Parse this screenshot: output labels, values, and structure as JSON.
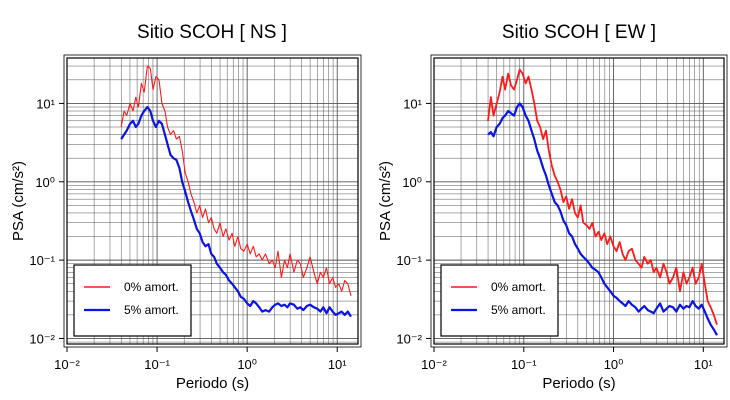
{
  "figure": {
    "colors": {
      "undamped": "#ff1a1a",
      "damped": "#0a14e6",
      "frame": "#000000",
      "grid": "#555555"
    }
  },
  "chart_data": [
    {
      "type": "line",
      "title": "Sitio SCOH [ NS ]",
      "xlabel": "Periodo (s)",
      "ylabel": "PSA (cm/s²)",
      "xscale": "log",
      "yscale": "log",
      "xlim": [
        0.01,
        17
      ],
      "ylim": [
        0.0085,
        38
      ],
      "xticks": [
        0.01,
        0.1,
        1,
        10
      ],
      "xtick_labels": [
        "10⁻²",
        "10⁻¹",
        "10⁰",
        "10¹"
      ],
      "yticks": [
        0.01,
        0.1,
        1,
        10
      ],
      "ytick_labels": [
        "10⁻²",
        "10⁻¹",
        "10⁰",
        "10¹"
      ],
      "grid": true,
      "legend_position": "bottom-left",
      "series": [
        {
          "name": "0% amort.",
          "color": "#ff1a1a",
          "x": [
            0.04,
            0.043,
            0.046,
            0.05,
            0.054,
            0.058,
            0.062,
            0.067,
            0.072,
            0.078,
            0.084,
            0.09,
            0.097,
            0.105,
            0.113,
            0.122,
            0.131,
            0.141,
            0.152,
            0.164,
            0.177,
            0.19,
            0.205,
            0.221,
            0.238,
            0.256,
            0.276,
            0.297,
            0.32,
            0.345,
            0.372,
            0.4,
            0.43,
            0.46,
            0.5,
            0.54,
            0.58,
            0.63,
            0.68,
            0.73,
            0.79,
            0.85,
            0.92,
            1.0,
            1.08,
            1.17,
            1.26,
            1.36,
            1.47,
            1.6,
            1.75,
            1.9,
            2.05,
            2.2,
            2.4,
            2.6,
            2.8,
            3.0,
            3.3,
            3.6,
            3.9,
            4.2,
            4.6,
            5.0,
            5.5,
            6.0,
            6.5,
            7.0,
            7.6,
            8.2,
            8.9,
            9.6,
            10.4,
            11.2,
            12.1,
            13.1,
            14.2
          ],
          "y": [
            5,
            8,
            7,
            10,
            8,
            12,
            9,
            18,
            14,
            30,
            28,
            15,
            22,
            20,
            10,
            8,
            5,
            4,
            4.5,
            3.5,
            3.8,
            2.5,
            1.3,
            1.0,
            0.7,
            0.55,
            0.4,
            0.5,
            0.35,
            0.45,
            0.3,
            0.35,
            0.25,
            0.22,
            0.3,
            0.2,
            0.25,
            0.18,
            0.22,
            0.15,
            0.2,
            0.14,
            0.13,
            0.16,
            0.12,
            0.15,
            0.11,
            0.12,
            0.1,
            0.12,
            0.09,
            0.1,
            0.08,
            0.13,
            0.06,
            0.1,
            0.08,
            0.12,
            0.07,
            0.1,
            0.09,
            0.06,
            0.08,
            0.11,
            0.07,
            0.05,
            0.07,
            0.06,
            0.08,
            0.05,
            0.06,
            0.045,
            0.05,
            0.04,
            0.055,
            0.05,
            0.035
          ]
        },
        {
          "name": "5% amort.",
          "color": "#0a14e6",
          "x": [
            0.04,
            0.043,
            0.046,
            0.05,
            0.054,
            0.058,
            0.062,
            0.067,
            0.072,
            0.078,
            0.084,
            0.09,
            0.097,
            0.105,
            0.113,
            0.122,
            0.131,
            0.141,
            0.152,
            0.164,
            0.177,
            0.19,
            0.205,
            0.221,
            0.238,
            0.256,
            0.276,
            0.297,
            0.32,
            0.345,
            0.372,
            0.4,
            0.43,
            0.46,
            0.5,
            0.54,
            0.58,
            0.63,
            0.68,
            0.73,
            0.79,
            0.85,
            0.92,
            1.0,
            1.08,
            1.17,
            1.26,
            1.36,
            1.47,
            1.6,
            1.75,
            1.9,
            2.05,
            2.2,
            2.4,
            2.6,
            2.8,
            3.0,
            3.3,
            3.6,
            3.9,
            4.2,
            4.6,
            5.0,
            5.5,
            6.0,
            6.5,
            7.0,
            7.6,
            8.2,
            8.9,
            9.6,
            10.4,
            11.2,
            12.1,
            13.1,
            14.2
          ],
          "y": [
            3.5,
            4.0,
            4.5,
            5.5,
            6.0,
            5.0,
            5.5,
            7.0,
            8.0,
            9.0,
            8.0,
            6.0,
            5.0,
            6.0,
            5.5,
            4.0,
            3.0,
            2.2,
            2.0,
            1.9,
            1.5,
            1.0,
            0.75,
            0.55,
            0.42,
            0.33,
            0.25,
            0.22,
            0.17,
            0.15,
            0.16,
            0.12,
            0.11,
            0.09,
            0.08,
            0.07,
            0.065,
            0.055,
            0.05,
            0.045,
            0.04,
            0.034,
            0.032,
            0.028,
            0.026,
            0.03,
            0.028,
            0.025,
            0.022,
            0.023,
            0.022,
            0.025,
            0.027,
            0.028,
            0.026,
            0.027,
            0.025,
            0.028,
            0.027,
            0.024,
            0.025,
            0.023,
            0.026,
            0.027,
            0.025,
            0.024,
            0.022,
            0.025,
            0.021,
            0.025,
            0.022,
            0.02,
            0.021,
            0.022,
            0.02,
            0.022,
            0.019
          ]
        }
      ]
    },
    {
      "type": "line",
      "title": "Sitio SCOH [ EW ]",
      "xlabel": "Periodo (s)",
      "ylabel": "PSA (cm/s²)",
      "xscale": "log",
      "yscale": "log",
      "xlim": [
        0.01,
        17
      ],
      "ylim": [
        0.0085,
        38
      ],
      "xticks": [
        0.01,
        0.1,
        1,
        10
      ],
      "xtick_labels": [
        "10⁻²",
        "10⁻¹",
        "10⁰",
        "10¹"
      ],
      "yticks": [
        0.01,
        0.1,
        1,
        10
      ],
      "ytick_labels": [
        "10⁻²",
        "10⁻¹",
        "10⁰",
        "10¹"
      ],
      "grid": true,
      "legend_position": "bottom-left",
      "series": [
        {
          "name": "0% amort.",
          "color": "#ff1a1a",
          "x": [
            0.04,
            0.043,
            0.046,
            0.05,
            0.054,
            0.058,
            0.062,
            0.067,
            0.072,
            0.078,
            0.084,
            0.09,
            0.097,
            0.105,
            0.113,
            0.122,
            0.131,
            0.141,
            0.152,
            0.164,
            0.177,
            0.19,
            0.205,
            0.221,
            0.238,
            0.256,
            0.276,
            0.297,
            0.32,
            0.345,
            0.372,
            0.4,
            0.43,
            0.46,
            0.5,
            0.54,
            0.58,
            0.63,
            0.68,
            0.73,
            0.79,
            0.85,
            0.92,
            1.0,
            1.08,
            1.17,
            1.26,
            1.36,
            1.47,
            1.6,
            1.75,
            1.9,
            2.05,
            2.2,
            2.4,
            2.6,
            2.8,
            3.0,
            3.3,
            3.6,
            3.9,
            4.2,
            4.6,
            5.0,
            5.5,
            6.0,
            6.5,
            7.0,
            7.6,
            8.2,
            8.9,
            9.6,
            10.4,
            11.2,
            12.1,
            13.1,
            14.2
          ],
          "y": [
            6,
            12,
            7,
            10,
            14,
            22,
            15,
            24,
            17,
            15,
            20,
            27,
            24,
            18,
            22,
            15,
            10,
            6,
            5,
            3.5,
            4.5,
            2.5,
            1.6,
            1.2,
            1.0,
            0.8,
            0.55,
            0.65,
            0.45,
            0.6,
            0.4,
            0.35,
            0.5,
            0.3,
            0.28,
            0.25,
            0.3,
            0.2,
            0.23,
            0.18,
            0.22,
            0.16,
            0.2,
            0.15,
            0.13,
            0.17,
            0.12,
            0.1,
            0.13,
            0.14,
            0.1,
            0.09,
            0.08,
            0.11,
            0.09,
            0.1,
            0.07,
            0.08,
            0.06,
            0.09,
            0.07,
            0.05,
            0.06,
            0.08,
            0.04,
            0.07,
            0.05,
            0.06,
            0.08,
            0.05,
            0.06,
            0.09,
            0.05,
            0.03,
            0.025,
            0.02,
            0.015
          ]
        },
        {
          "name": "5% amort.",
          "color": "#0a14e6",
          "x": [
            0.04,
            0.043,
            0.046,
            0.05,
            0.054,
            0.058,
            0.062,
            0.067,
            0.072,
            0.078,
            0.084,
            0.09,
            0.097,
            0.105,
            0.113,
            0.122,
            0.131,
            0.141,
            0.152,
            0.164,
            0.177,
            0.19,
            0.205,
            0.221,
            0.238,
            0.256,
            0.276,
            0.297,
            0.32,
            0.345,
            0.372,
            0.4,
            0.43,
            0.46,
            0.5,
            0.54,
            0.58,
            0.63,
            0.68,
            0.73,
            0.79,
            0.85,
            0.92,
            1.0,
            1.08,
            1.17,
            1.26,
            1.36,
            1.47,
            1.6,
            1.75,
            1.9,
            2.05,
            2.2,
            2.4,
            2.6,
            2.8,
            3.0,
            3.3,
            3.6,
            3.9,
            4.2,
            4.6,
            5.0,
            5.5,
            6.0,
            6.5,
            7.0,
            7.6,
            8.2,
            8.9,
            9.6,
            10.4,
            11.2,
            12.1,
            13.1,
            14.2
          ],
          "y": [
            4,
            4.3,
            3.8,
            5,
            5.5,
            6.5,
            7,
            8,
            7.5,
            7,
            9,
            10,
            9,
            7,
            6,
            4.5,
            3.5,
            2.5,
            2.0,
            1.5,
            1.2,
            0.9,
            0.7,
            0.55,
            0.5,
            0.42,
            0.32,
            0.28,
            0.22,
            0.2,
            0.16,
            0.14,
            0.12,
            0.11,
            0.1,
            0.09,
            0.08,
            0.075,
            0.07,
            0.06,
            0.05,
            0.045,
            0.04,
            0.035,
            0.033,
            0.03,
            0.028,
            0.026,
            0.03,
            0.027,
            0.025,
            0.022,
            0.024,
            0.026,
            0.023,
            0.022,
            0.021,
            0.024,
            0.028,
            0.022,
            0.024,
            0.026,
            0.025,
            0.022,
            0.027,
            0.024,
            0.026,
            0.025,
            0.03,
            0.026,
            0.024,
            0.027,
            0.022,
            0.018,
            0.015,
            0.013,
            0.011
          ]
        }
      ]
    }
  ]
}
